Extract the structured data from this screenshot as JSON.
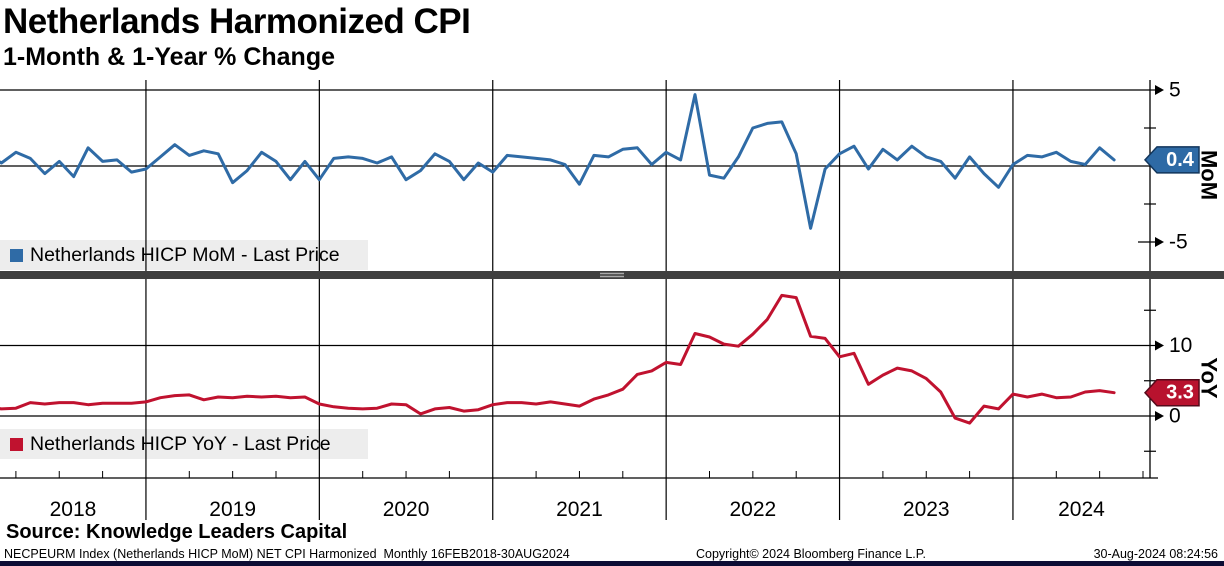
{
  "header": {
    "title": "Netherlands Harmonized CPI",
    "subtitle": "1-Month & 1-Year % Change"
  },
  "footer": {
    "source_line": "Source: Knowledge Leaders Capital",
    "ticker_line": "NECPEURM Index (Netherlands HICP MoM) NET CPI Harmonized  Monthly 16FEB2018-30AUG2024",
    "copyright": "Copyright© 2024 Bloomberg Finance L.P.",
    "timestamp": "30-Aug-2024 08:24:56"
  },
  "chart_data": {
    "type": "line",
    "title": "Netherlands Harmonized CPI",
    "subtitle": "1-Month & 1-Year % Change",
    "frequency": "monthly",
    "x_start": "2018-02",
    "x_end": "2024-08",
    "n_points": 79,
    "x_year_labels": [
      "2018",
      "2019",
      "2020",
      "2021",
      "2022",
      "2023",
      "2024"
    ],
    "grid": "on",
    "panels": [
      {
        "name": "MoM",
        "axis_label": "MoM",
        "axis_side": "right",
        "legend": "Netherlands HICP MoM - Last Price",
        "color": "#2f6ba6",
        "tag_fill": "#2e6aa5",
        "tag_stroke": "#12365c",
        "last_value": 0.4,
        "last_value_label": "0.4",
        "ylim_visible": [
          -6.3,
          5.8
        ],
        "axis": {
          "labeled_ticks": [
            {
              "value": 5,
              "label": "5",
              "gridline": true
            },
            {
              "value": -5,
              "label": "-5",
              "gridline": false
            }
          ],
          "minor_ticks": [
            2.5,
            -2.5
          ],
          "gridlines": [
            5,
            0
          ]
        },
        "values": [
          0.8,
          0.2,
          0.9,
          0.5,
          -0.5,
          0.3,
          -0.7,
          1.2,
          0.3,
          0.4,
          -0.4,
          -0.2,
          0.6,
          1.4,
          0.7,
          1.0,
          0.8,
          -1.1,
          -0.3,
          0.9,
          0.3,
          -0.9,
          0.3,
          -0.9,
          0.5,
          0.6,
          0.5,
          0.2,
          0.6,
          -0.9,
          -0.3,
          0.8,
          0.3,
          -0.9,
          0.2,
          -0.4,
          0.7,
          0.6,
          0.5,
          0.4,
          0.1,
          -1.2,
          0.7,
          0.6,
          1.1,
          1.2,
          0.1,
          0.9,
          0.4,
          4.7,
          -0.6,
          -0.8,
          0.6,
          2.5,
          2.8,
          2.9,
          0.8,
          -4.1,
          -0.2,
          0.8,
          1.3,
          -0.2,
          1.1,
          0.4,
          1.3,
          0.6,
          0.3,
          -0.8,
          0.6,
          -0.5,
          -1.4,
          0.1,
          0.7,
          0.6,
          0.9,
          0.3,
          0.1,
          1.2,
          0.4
        ]
      },
      {
        "name": "YoY",
        "axis_label": "YoY",
        "axis_side": "right",
        "legend": "Netherlands HICP YoY - Last Price",
        "color": "#c0122f",
        "tag_fill": "#b8122e",
        "tag_stroke": "#55091a",
        "last_value": 3.3,
        "last_value_label": "3.3",
        "ylim_visible": [
          -8.7,
          19.6
        ],
        "axis": {
          "labeled_ticks": [
            {
              "value": 10,
              "label": "10",
              "gridline": true
            },
            {
              "value": 0,
              "label": "0",
              "gridline": true
            }
          ],
          "minor_ticks": [
            15,
            5,
            -5
          ],
          "gridlines": [
            10,
            0
          ]
        },
        "values": [
          1.3,
          1.0,
          1.1,
          1.9,
          1.7,
          1.9,
          1.9,
          1.6,
          1.8,
          1.8,
          1.8,
          2.0,
          2.6,
          2.9,
          3.0,
          2.3,
          2.7,
          2.6,
          2.8,
          2.7,
          2.8,
          2.6,
          2.7,
          1.7,
          1.3,
          1.1,
          1.0,
          1.1,
          1.7,
          1.6,
          0.3,
          1.0,
          1.2,
          0.7,
          0.9,
          1.6,
          1.9,
          1.9,
          1.7,
          2.0,
          1.7,
          1.4,
          2.4,
          3.0,
          3.8,
          5.9,
          6.4,
          7.6,
          7.3,
          11.7,
          11.2,
          10.2,
          9.9,
          11.6,
          13.7,
          17.1,
          16.8,
          11.3,
          11.0,
          8.4,
          8.9,
          4.5,
          5.8,
          6.8,
          6.4,
          5.3,
          3.4,
          -0.3,
          -1.0,
          1.4,
          1.0,
          3.1,
          2.7,
          3.1,
          2.6,
          2.7,
          3.4,
          3.6,
          3.3
        ]
      }
    ]
  }
}
